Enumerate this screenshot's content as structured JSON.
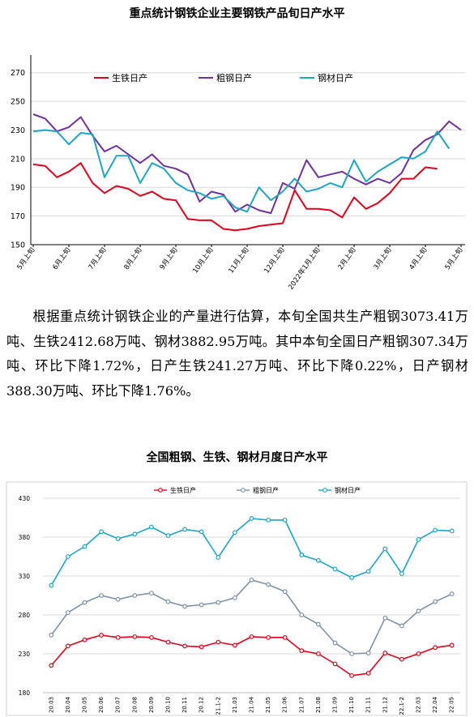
{
  "paragraph": "根据重点统计钢铁企业的产量进行估算，本旬全国共生产粗钢3073.41万吨、生铁2412.68万吨、钢材3882.95万吨。其中本旬全国日产粗钢307.34万吨、环比下降1.72%，日产生铁241.27万吨、环比下降0.22%，日产钢材388.30万吨、环比下降1.76%。",
  "chart_data": [
    {
      "type": "line",
      "title": "重点统计钢铁企业主要钢铁产品旬日产水平",
      "ylim": [
        150,
        280
      ],
      "yticks": [
        150,
        170,
        190,
        210,
        230,
        250,
        270
      ],
      "grid": true,
      "legend_position": "top",
      "x_tick_labels": [
        "5月上旬",
        "6月上旬",
        "7月上旬",
        "8月上旬",
        "9月上旬",
        "10月上旬",
        "11月上旬",
        "12月上旬",
        "2022年1月上旬",
        "2月上旬",
        "3月上旬",
        "4月上旬",
        "5月上旬"
      ],
      "x_tick_index": [
        0,
        3,
        6,
        9,
        12,
        15,
        18,
        21,
        24,
        27,
        30,
        33,
        36
      ],
      "series": [
        {
          "name": "生铁日产",
          "color": "#e3001b",
          "values": [
            206,
            205,
            197,
            201,
            207,
            193,
            186,
            191,
            189,
            184,
            187,
            182,
            181,
            168,
            167,
            167,
            161,
            160,
            161,
            163,
            164,
            165,
            188,
            175,
            175,
            174,
            169,
            183,
            175,
            179,
            186,
            196,
            196,
            204,
            203
          ]
        },
        {
          "name": "粗钢日产",
          "color": "#7030a0",
          "values": [
            241,
            238,
            229,
            232,
            239,
            226,
            215,
            219,
            213,
            207,
            213,
            205,
            203,
            199,
            180,
            187,
            185,
            173,
            178,
            174,
            172,
            193,
            189,
            209,
            197,
            199,
            201,
            196,
            192,
            196,
            193,
            200,
            216,
            223,
            227,
            236,
            230
          ]
        },
        {
          "name": "钢材日产",
          "color": "#1aa6c8",
          "values": [
            229,
            230,
            229,
            220,
            228,
            227,
            197,
            212,
            212,
            193,
            207,
            203,
            193,
            188,
            186,
            182,
            184,
            176,
            173,
            190,
            181,
            187,
            196,
            187,
            189,
            193,
            190,
            209,
            194,
            201,
            206,
            211,
            210,
            215,
            229,
            217
          ]
        }
      ]
    },
    {
      "type": "line",
      "title": "全国粗钢、生铁、钢材月度日产水平",
      "ylim": [
        180,
        430
      ],
      "yticks": [
        180,
        230,
        280,
        330,
        380,
        430
      ],
      "grid": true,
      "legend_position": "top",
      "categories": [
        "20.03",
        "20.04",
        "20.05",
        "20.06",
        "20.07",
        "20.08",
        "20.09",
        "20.10",
        "20.11",
        "20.12",
        "21.1-2",
        "21.03",
        "21.04",
        "21.05",
        "21.06",
        "21.07",
        "21.08",
        "21.09",
        "21.10",
        "21.11",
        "21.12",
        "22.1-2",
        "22.03",
        "22.04",
        "22.05"
      ],
      "series": [
        {
          "name": "生铁日产",
          "color": "#e3001b",
          "values": [
            215,
            240,
            248,
            254,
            251,
            252,
            251,
            245,
            240,
            239,
            245,
            241,
            252,
            251,
            251,
            234,
            230,
            217,
            202,
            205,
            231,
            223,
            230,
            238,
            241
          ]
        },
        {
          "name": "粗钢日产",
          "color": "#7f92a6",
          "values": [
            254,
            283,
            296,
            305,
            300,
            305,
            308,
            297,
            291,
            293,
            296,
            302,
            325,
            319,
            310,
            280,
            268,
            244,
            230,
            231,
            276,
            266,
            285,
            297,
            307
          ]
        },
        {
          "name": "钢材日产",
          "color": "#1aa6c8",
          "values": [
            318,
            355,
            368,
            387,
            378,
            384,
            393,
            382,
            390,
            387,
            354,
            386,
            404,
            402,
            402,
            357,
            350,
            339,
            328,
            336,
            365,
            333,
            377,
            389,
            388
          ]
        }
      ]
    }
  ]
}
